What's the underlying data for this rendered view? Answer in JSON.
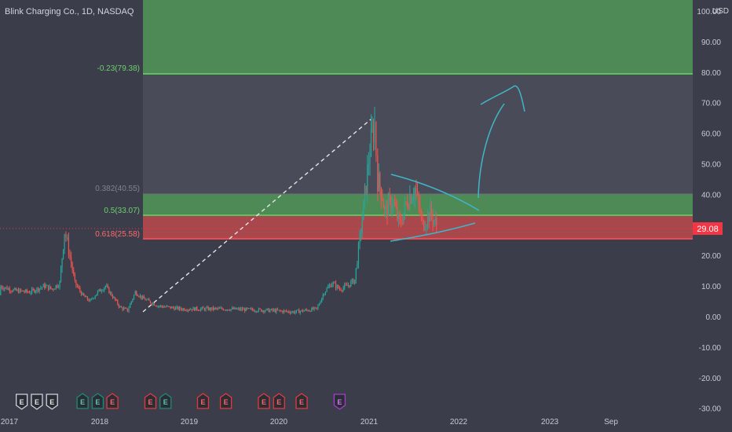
{
  "symbol": {
    "title": "Blink Charging Co., 1D, NASDAQ"
  },
  "price_scale": {
    "currency": "USD"
  },
  "colors": {
    "background": "#3b3d4a",
    "fib_zone_green": "#4e8a55",
    "fib_line_green": "#5cc15e",
    "fib_zone_red": "#a8474c",
    "fib_line_red": "#ee4a4f",
    "candle_up": "#26a69a",
    "candle_down": "#ef5350",
    "drawing_cyan": "#3fb6c8",
    "price_tag": "#f23645",
    "earnings_teal": "#1f8a74",
    "earnings_red": "#e33b3b",
    "earnings_grey": "#cfd2da",
    "earnings_orange": "#e0a93f",
    "earnings_purple": "#a93bd0"
  },
  "chart_data": {
    "type": "candlestick",
    "y_axis": {
      "min": -30,
      "max": 100,
      "ticks": [
        -30,
        -20,
        -10,
        0,
        10,
        20,
        30,
        40,
        50,
        60,
        70,
        80,
        90,
        100
      ],
      "tick_labels": [
        "-30.00",
        "-20.00",
        "-10.00",
        "0.00",
        "10.00",
        "20.00",
        "30.00",
        "40.00",
        "50.00",
        "60.00",
        "70.00",
        "80.00",
        "90.00",
        "100.00"
      ]
    },
    "x_axis": {
      "tick_labels": [
        "2017",
        "2018",
        "2019",
        "2020",
        "2021",
        "2022",
        "2023",
        "Sep"
      ]
    },
    "last_price": {
      "value": 29.08,
      "label": "29.08"
    },
    "fib_levels": [
      {
        "ratio_label": "-0.23(79.38)",
        "price": 79.38,
        "color": "#5cc15e"
      },
      {
        "ratio_label": "0.382(40.55)",
        "price": 40.55,
        "color": "#7b7e89"
      },
      {
        "ratio_label": "0.5(33.07)",
        "price": 33.07,
        "color": "#5cc15e"
      },
      {
        "ratio_label": "0.618(25.58)",
        "price": 25.58,
        "color": "#ee4a4f"
      }
    ],
    "price_path": [
      [
        "2016-08",
        7
      ],
      [
        "2016-09",
        13
      ],
      [
        "2016-10",
        9
      ],
      [
        "2016-12",
        10
      ],
      [
        "2017-02",
        8.5
      ],
      [
        "2017-04",
        8
      ],
      [
        "2017-05",
        9
      ],
      [
        "2017-06",
        10
      ],
      [
        "2017-07",
        9
      ],
      [
        "2017-08",
        11
      ],
      [
        "2017-08-20",
        28
      ],
      [
        "2017-09-01",
        24
      ],
      [
        "2017-10",
        11
      ],
      [
        "2017-11",
        7
      ],
      [
        "2017-12",
        5
      ],
      [
        "2018-01",
        8
      ],
      [
        "2018-02",
        10
      ],
      [
        "2018-04",
        3
      ],
      [
        "2018-05",
        2
      ],
      [
        "2018-06",
        8
      ],
      [
        "2018-07",
        6
      ],
      [
        "2018-09",
        3.5
      ],
      [
        "2018-12",
        2.5
      ],
      [
        "2019-06",
        2.5
      ],
      [
        "2019-12",
        2
      ],
      [
        "2020-03",
        1.5
      ],
      [
        "2020-06",
        2.5
      ],
      [
        "2020-07",
        8
      ],
      [
        "2020-08",
        11
      ],
      [
        "2020-09",
        9
      ],
      [
        "2020-10",
        10
      ],
      [
        "2020-11",
        12
      ],
      [
        "2020-12",
        32
      ],
      [
        "2021-01",
        55
      ],
      [
        "2021-01-20",
        63
      ],
      [
        "2021-02",
        45
      ],
      [
        "2021-02-20",
        40
      ],
      [
        "2021-03",
        34
      ],
      [
        "2021-04",
        38
      ],
      [
        "2021-05",
        30
      ],
      [
        "2021-06",
        38
      ],
      [
        "2021-07",
        42
      ],
      [
        "2021-08",
        30
      ],
      [
        "2021-09",
        34
      ],
      [
        "2021-10",
        29
      ]
    ],
    "earnings_markers": [
      {
        "date": "2016-06",
        "kind": "grey"
      },
      {
        "date": "2016-09",
        "kind": "orange"
      },
      {
        "date": "2016-11",
        "kind": "grey"
      },
      {
        "date": "2017-03",
        "kind": "grey"
      },
      {
        "date": "2017-05",
        "kind": "grey"
      },
      {
        "date": "2017-07",
        "kind": "grey"
      },
      {
        "date": "2017-11",
        "kind": "teal"
      },
      {
        "date": "2018-01",
        "kind": "teal"
      },
      {
        "date": "2018-03",
        "kind": "red"
      },
      {
        "date": "2018-08",
        "kind": "red"
      },
      {
        "date": "2018-10",
        "kind": "teal"
      },
      {
        "date": "2019-03",
        "kind": "red"
      },
      {
        "date": "2019-06",
        "kind": "red"
      },
      {
        "date": "2019-11",
        "kind": "red"
      },
      {
        "date": "2020-01",
        "kind": "red"
      },
      {
        "date": "2020-04",
        "kind": "red"
      },
      {
        "date": "2020-09",
        "kind": "purple"
      }
    ]
  }
}
